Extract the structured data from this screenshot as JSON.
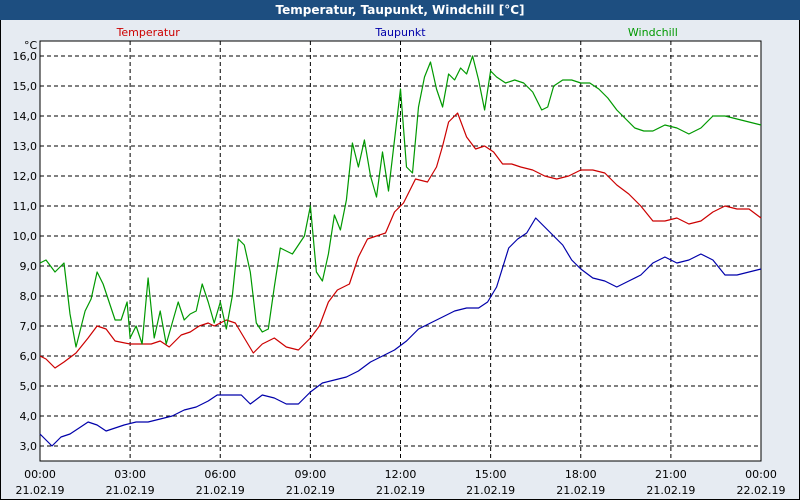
{
  "window": {
    "title": "Temperatur, Taupunkt, Windchill [°C]"
  },
  "colors": {
    "title_bar": "#1d4e80",
    "plot_background": "#ffffff",
    "outer_background": "#e6ebf2",
    "temperatur": "#cc0000",
    "taupunkt": "#0000aa",
    "windchill": "#009900"
  },
  "chart_data": {
    "type": "line",
    "title": "Temperatur, Taupunkt, Windchill [°C]",
    "yunit": "°C",
    "ylim": [
      2.5,
      16.5
    ],
    "yticks": [
      "3,0",
      "4,0",
      "5,0",
      "6,0",
      "7,0",
      "8,0",
      "9,0",
      "10,0",
      "11,0",
      "12,0",
      "13,0",
      "14,0",
      "15,0",
      "16,0"
    ],
    "xlim": [
      0,
      24
    ],
    "xticks": [
      {
        "time": "00:00",
        "date": "21.02.19"
      },
      {
        "time": "03:00",
        "date": "21.02.19"
      },
      {
        "time": "06:00",
        "date": "21.02.19"
      },
      {
        "time": "09:00",
        "date": "21.02.19"
      },
      {
        "time": "12:00",
        "date": "21.02.19"
      },
      {
        "time": "15:00",
        "date": "21.02.19"
      },
      {
        "time": "18:00",
        "date": "21.02.19"
      },
      {
        "time": "21:00",
        "date": "21.02.19"
      },
      {
        "time": "00:00",
        "date": "22.02.19"
      }
    ],
    "grid": true,
    "legend_placement": "top",
    "series": [
      {
        "name": "Temperatur",
        "color": "#cc0000",
        "x": [
          0,
          0.2,
          0.5,
          0.8,
          1.2,
          1.6,
          1.9,
          2.2,
          2.5,
          3.0,
          3.5,
          3.7,
          4.0,
          4.3,
          4.7,
          5.0,
          5.3,
          5.6,
          5.8,
          6.2,
          6.5,
          6.8,
          7.1,
          7.4,
          7.8,
          8.2,
          8.6,
          9.0,
          9.3,
          9.6,
          9.9,
          10.3,
          10.6,
          10.9,
          11.2,
          11.5,
          11.8,
          12.1,
          12.5,
          12.9,
          13.2,
          13.4,
          13.6,
          13.9,
          14.2,
          14.5,
          14.8,
          15.1,
          15.4,
          15.7,
          16.0,
          16.4,
          16.8,
          17.2,
          17.6,
          18.0,
          18.4,
          18.8,
          19.2,
          19.6,
          20.0,
          20.4,
          20.8,
          21.2,
          21.6,
          22.0,
          22.4,
          22.8,
          23.2,
          23.6,
          24.0
        ],
        "values": [
          6.0,
          5.9,
          5.6,
          5.8,
          6.1,
          6.6,
          7.0,
          6.9,
          6.5,
          6.4,
          6.4,
          6.4,
          6.5,
          6.3,
          6.7,
          6.8,
          7.0,
          7.1,
          7.0,
          7.2,
          7.1,
          6.6,
          6.1,
          6.4,
          6.6,
          6.3,
          6.2,
          6.6,
          7.0,
          7.8,
          8.2,
          8.4,
          9.3,
          9.9,
          10.0,
          10.1,
          10.8,
          11.1,
          11.9,
          11.8,
          12.3,
          13.0,
          13.8,
          14.1,
          13.3,
          12.9,
          13.0,
          12.8,
          12.4,
          12.4,
          12.3,
          12.2,
          12.0,
          11.9,
          12.0,
          12.2,
          12.2,
          12.1,
          11.7,
          11.4,
          11.0,
          10.5,
          10.5,
          10.6,
          10.4,
          10.5,
          10.8,
          11.0,
          10.9,
          10.9,
          10.6
        ]
      },
      {
        "name": "Taupunkt",
        "color": "#0000aa",
        "x": [
          0,
          0.2,
          0.4,
          0.7,
          1.0,
          1.3,
          1.6,
          1.9,
          2.2,
          2.5,
          2.8,
          3.2,
          3.6,
          4.0,
          4.4,
          4.8,
          5.2,
          5.6,
          5.9,
          6.3,
          6.7,
          7.0,
          7.4,
          7.8,
          8.2,
          8.6,
          9.0,
          9.4,
          9.8,
          10.2,
          10.6,
          11.0,
          11.4,
          11.8,
          12.2,
          12.6,
          13.0,
          13.4,
          13.8,
          14.2,
          14.6,
          14.9,
          15.2,
          15.6,
          15.9,
          16.2,
          16.5,
          16.8,
          17.1,
          17.4,
          17.7,
          18.0,
          18.4,
          18.8,
          19.2,
          19.6,
          20.0,
          20.4,
          20.8,
          21.2,
          21.6,
          22.0,
          22.4,
          22.8,
          23.2,
          23.6,
          24.0
        ],
        "values": [
          3.4,
          3.2,
          3.0,
          3.3,
          3.4,
          3.6,
          3.8,
          3.7,
          3.5,
          3.6,
          3.7,
          3.8,
          3.8,
          3.9,
          4.0,
          4.2,
          4.3,
          4.5,
          4.7,
          4.7,
          4.7,
          4.4,
          4.7,
          4.6,
          4.4,
          4.4,
          4.8,
          5.1,
          5.2,
          5.3,
          5.5,
          5.8,
          6.0,
          6.2,
          6.5,
          6.9,
          7.1,
          7.3,
          7.5,
          7.6,
          7.6,
          7.8,
          8.3,
          9.6,
          9.9,
          10.1,
          10.6,
          10.3,
          10.0,
          9.7,
          9.2,
          8.9,
          8.6,
          8.5,
          8.3,
          8.5,
          8.7,
          9.1,
          9.3,
          9.1,
          9.2,
          9.4,
          9.2,
          8.7,
          8.7,
          8.8,
          8.9
        ]
      },
      {
        "name": "Windchill",
        "color": "#009900",
        "x": [
          0,
          0.2,
          0.5,
          0.8,
          1.0,
          1.2,
          1.5,
          1.7,
          1.9,
          2.1,
          2.3,
          2.5,
          2.7,
          2.9,
          3.0,
          3.2,
          3.4,
          3.6,
          3.8,
          4.0,
          4.2,
          4.4,
          4.6,
          4.8,
          5.0,
          5.2,
          5.4,
          5.6,
          5.8,
          6.0,
          6.2,
          6.4,
          6.6,
          6.8,
          7.0,
          7.2,
          7.4,
          7.6,
          7.8,
          8.0,
          8.2,
          8.4,
          8.6,
          8.8,
          9.0,
          9.2,
          9.4,
          9.6,
          9.8,
          10.0,
          10.2,
          10.4,
          10.6,
          10.8,
          11.0,
          11.2,
          11.4,
          11.6,
          11.8,
          12.0,
          12.2,
          12.4,
          12.6,
          12.8,
          13.0,
          13.2,
          13.4,
          13.6,
          13.8,
          14.0,
          14.2,
          14.4,
          14.6,
          14.8,
          15.0,
          15.2,
          15.5,
          15.8,
          16.1,
          16.4,
          16.7,
          16.9,
          17.1,
          17.4,
          17.7,
          18.0,
          18.3,
          18.6,
          18.9,
          19.2,
          19.5,
          19.8,
          20.1,
          20.4,
          20.8,
          21.2,
          21.6,
          22.0,
          22.4,
          22.8,
          23.2,
          23.6,
          24.0
        ],
        "values": [
          9.1,
          9.2,
          8.8,
          9.1,
          7.4,
          6.3,
          7.5,
          7.9,
          8.8,
          8.4,
          7.8,
          7.2,
          7.2,
          7.8,
          6.6,
          7.0,
          6.4,
          8.6,
          6.6,
          7.5,
          6.4,
          7.1,
          7.8,
          7.2,
          7.4,
          7.5,
          8.4,
          7.8,
          7.1,
          7.8,
          6.9,
          8.0,
          9.9,
          9.7,
          8.8,
          7.1,
          6.8,
          6.9,
          8.3,
          9.6,
          9.5,
          9.4,
          9.7,
          10.0,
          11.0,
          8.8,
          8.5,
          9.4,
          10.7,
          10.2,
          11.2,
          13.1,
          12.3,
          13.2,
          12.0,
          11.3,
          12.8,
          11.5,
          13.2,
          14.9,
          12.3,
          12.1,
          14.3,
          15.3,
          15.8,
          14.9,
          14.3,
          15.4,
          15.2,
          15.6,
          15.4,
          16.0,
          15.2,
          14.2,
          15.5,
          15.3,
          15.1,
          15.2,
          15.1,
          14.8,
          14.2,
          14.3,
          15.0,
          15.2,
          15.2,
          15.1,
          15.1,
          14.9,
          14.6,
          14.2,
          13.9,
          13.6,
          13.5,
          13.5,
          13.7,
          13.6,
          13.4,
          13.6,
          14.0,
          14.0,
          13.9,
          13.8,
          13.7
        ]
      }
    ]
  }
}
